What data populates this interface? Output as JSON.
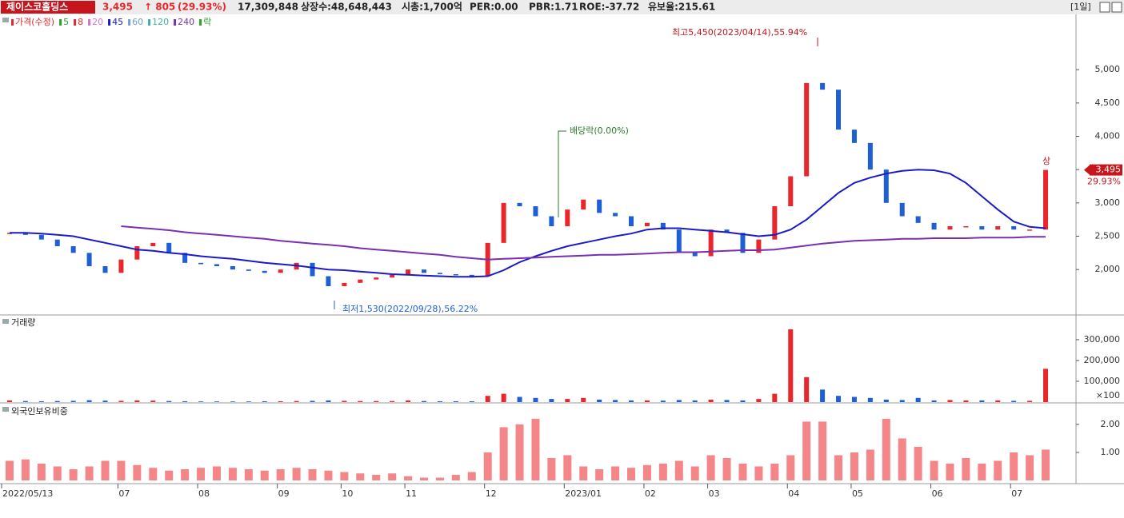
{
  "header": {
    "name": "제이스코홀딩스",
    "price": "3,495",
    "change": "↑ 805",
    "rate": "(29.93%)",
    "volume": "17,309,848",
    "listed": "상장수:48,648,443",
    "cap": "시총:1,700억",
    "per": "PER:0.00",
    "pbr": "PBR:1.71",
    "roe": "ROE:-37.72",
    "reserve": "유보율:215.61",
    "period": "[1일]"
  },
  "chart_data": [
    {
      "type": "line",
      "legend": [
        {
          "name": "가격(수정)",
          "color": "#e8262b"
        },
        {
          "name": "5",
          "color": "#2ca02c"
        },
        {
          "name": "8",
          "color": "#e8262b"
        },
        {
          "name": "20",
          "color": "#d46fd4"
        },
        {
          "name": "45",
          "color": "#1a1ac8"
        },
        {
          "name": "60",
          "color": "#6fa0cf"
        },
        {
          "name": "120",
          "color": "#3bb0a0"
        },
        {
          "name": "240",
          "color": "#7a2fb0"
        },
        {
          "name": "락",
          "color": "#2ca02c"
        }
      ],
      "categories": [
        "2022/05/13",
        null,
        null,
        null,
        null,
        null,
        null,
        "07",
        null,
        null,
        null,
        null,
        "08",
        null,
        null,
        null,
        null,
        "09",
        null,
        null,
        null,
        "10",
        null,
        null,
        null,
        "11",
        null,
        null,
        null,
        null,
        "12",
        null,
        null,
        null,
        null,
        "2023/01",
        null,
        null,
        null,
        null,
        "02",
        null,
        null,
        null,
        "03",
        null,
        null,
        null,
        null,
        "04",
        null,
        null,
        null,
        "05",
        null,
        null,
        null,
        null,
        "06",
        null,
        null,
        null,
        null,
        "07",
        null,
        null
      ],
      "series": [
        {
          "style": "candle",
          "up_color": "#e8262b",
          "down_color": "#1e5fd6",
          "values": [
            2550,
            2520,
            2450,
            2350,
            2250,
            2050,
            1950,
            2150,
            2350,
            2400,
            2250,
            2100,
            2080,
            2050,
            2000,
            1980,
            1950,
            2000,
            2100,
            1900,
            1750,
            1800,
            1850,
            1880,
            1920,
            2000,
            1950,
            1930,
            1920,
            1900,
            2400,
            3000,
            2950,
            2800,
            2650,
            2900,
            3050,
            2850,
            2800,
            2650,
            2700,
            2600,
            2250,
            2200,
            2600,
            2550,
            2250,
            2450,
            2950,
            3400,
            4800,
            4700,
            4100,
            3900,
            3500,
            3000,
            2800,
            2700,
            2600,
            2650,
            2650,
            2600,
            2650,
            2600,
            2600,
            3495
          ]
        },
        {
          "style": "line",
          "color": "#1a1ac8",
          "values": [
            2550,
            2550,
            2540,
            2520,
            2500,
            2450,
            2400,
            2350,
            2300,
            2280,
            2250,
            2230,
            2200,
            2180,
            2160,
            2130,
            2100,
            2080,
            2060,
            2030,
            2000,
            1990,
            1970,
            1950,
            1930,
            1920,
            1910,
            1900,
            1890,
            1890,
            1900,
            1990,
            2110,
            2200,
            2280,
            2350,
            2400,
            2450,
            2500,
            2540,
            2600,
            2620,
            2620,
            2600,
            2580,
            2560,
            2530,
            2500,
            2520,
            2600,
            2750,
            2950,
            3150,
            3300,
            3380,
            3440,
            3480,
            3500,
            3490,
            3440,
            3300,
            3100,
            2900,
            2720,
            2640,
            2620
          ]
        },
        {
          "style": "line",
          "color": "#7a2fb0",
          "values": [
            null,
            null,
            null,
            null,
            null,
            null,
            null,
            2650,
            2630,
            2610,
            2590,
            2560,
            2540,
            2520,
            2500,
            2480,
            2460,
            2430,
            2410,
            2390,
            2370,
            2350,
            2320,
            2300,
            2280,
            2260,
            2240,
            2220,
            2190,
            2170,
            2150,
            2160,
            2170,
            2180,
            2190,
            2200,
            2210,
            2220,
            2220,
            2230,
            2240,
            2250,
            2260,
            2260,
            2270,
            2280,
            2290,
            2290,
            2300,
            2330,
            2360,
            2390,
            2410,
            2430,
            2440,
            2450,
            2460,
            2460,
            2470,
            2470,
            2470,
            2480,
            2480,
            2480,
            2490,
            2490
          ]
        }
      ],
      "ylim": [
        1330,
        5830
      ],
      "yticks": [
        {
          "value": 2000,
          "label": "2,000"
        },
        {
          "value": 2500,
          "label": "2,500"
        },
        {
          "value": 3000,
          "label": "3,000"
        },
        {
          "value": 3500,
          "label": "3,500"
        },
        {
          "value": 4000,
          "label": "4,000"
        },
        {
          "value": 4500,
          "label": "4,500"
        },
        {
          "value": 5000,
          "label": "5,000"
        }
      ],
      "grid": false,
      "annotations": [
        "최고5,450(2023/04/14),55.94%",
        "최저1,530(2022/09/28),56.22%",
        "배당락(0.00%)",
        "상"
      ],
      "last_label": "3,495",
      "last_rate": "29.93%"
    },
    {
      "type": "bar",
      "title": "거래량",
      "up_color": "#e8262b",
      "down_color": "#1e5fd6",
      "values": [
        8000,
        5000,
        4000,
        5000,
        6000,
        9000,
        7000,
        6000,
        8000,
        7000,
        5000,
        4000,
        3000,
        3000,
        3000,
        3000,
        4000,
        4000,
        5000,
        6000,
        8000,
        6000,
        5000,
        5000,
        5000,
        8000,
        5000,
        4000,
        4000,
        4000,
        30000,
        40000,
        25000,
        20000,
        15000,
        15000,
        20000,
        12000,
        10000,
        8000,
        8000,
        7000,
        10000,
        8000,
        12000,
        10000,
        8000,
        15000,
        40000,
        350000,
        120000,
        60000,
        30000,
        25000,
        20000,
        12000,
        10000,
        20000,
        8000,
        10000,
        8000,
        8000,
        8000,
        6000,
        6000,
        160000
      ],
      "ylim": [
        0,
        415000
      ],
      "yticks": [
        {
          "value": 100000,
          "label": "100,000"
        },
        {
          "value": 200000,
          "label": "200,000"
        },
        {
          "value": 300000,
          "label": "300,000"
        }
      ],
      "unit": "×100",
      "grid": false
    },
    {
      "type": "bar",
      "title": "외국인보유비중",
      "color": "#f4868a",
      "values": [
        0.7,
        0.75,
        0.6,
        0.5,
        0.4,
        0.5,
        0.7,
        0.7,
        0.55,
        0.45,
        0.35,
        0.4,
        0.45,
        0.5,
        0.45,
        0.4,
        0.35,
        0.4,
        0.45,
        0.4,
        0.35,
        0.3,
        0.25,
        0.2,
        0.25,
        0.15,
        0.1,
        0.1,
        0.2,
        0.3,
        1.0,
        1.9,
        2.0,
        2.2,
        0.8,
        0.9,
        0.5,
        0.4,
        0.5,
        0.45,
        0.55,
        0.6,
        0.7,
        0.5,
        0.9,
        0.8,
        0.6,
        0.5,
        0.6,
        0.9,
        2.1,
        2.1,
        0.9,
        1.0,
        1.1,
        2.2,
        1.5,
        1.2,
        0.7,
        0.6,
        0.8,
        0.6,
        0.7,
        1.0,
        0.9,
        1.1
      ],
      "ylim": [
        0,
        2.71
      ],
      "yticks": [
        {
          "value": 1,
          "label": "1.00"
        },
        {
          "value": 2,
          "label": "2.00"
        }
      ],
      "grid": false
    }
  ]
}
